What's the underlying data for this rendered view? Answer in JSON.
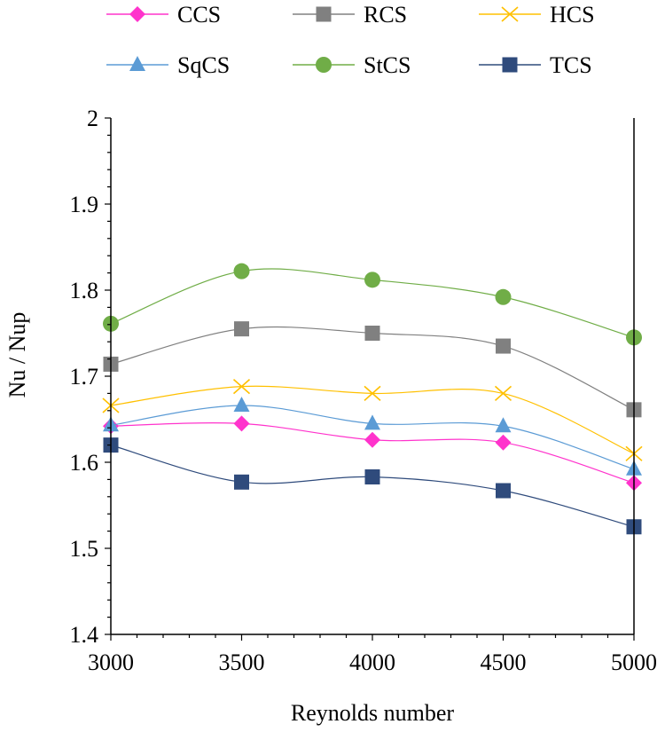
{
  "chart_data": {
    "type": "line",
    "title": "",
    "xlabel": "Reynolds number",
    "ylabel": "Nu / Nup",
    "x": [
      3000,
      3500,
      4000,
      4500,
      5000
    ],
    "xticks": [
      "3000",
      "3500",
      "4000",
      "4500",
      "5000"
    ],
    "xlim": [
      3000,
      5000
    ],
    "ylim": [
      1.4,
      2.0
    ],
    "yticks": [
      "1.4",
      "1.5",
      "1.6",
      "1.7",
      "1.8",
      "1.9",
      "2"
    ],
    "grid": false,
    "legend_position": "top",
    "series": [
      {
        "name": "CCS",
        "color": "#ff33cc",
        "marker": "diamond",
        "values": [
          1.642,
          1.645,
          1.626,
          1.623,
          1.576
        ]
      },
      {
        "name": "RCS",
        "color": "#808080",
        "marker": "square",
        "values": [
          1.714,
          1.755,
          1.75,
          1.735,
          1.661
        ]
      },
      {
        "name": "HCS",
        "color": "#ffc000",
        "marker": "x",
        "values": [
          1.666,
          1.688,
          1.68,
          1.68,
          1.61
        ]
      },
      {
        "name": "SqCS",
        "color": "#5b9bd5",
        "marker": "triangle",
        "values": [
          1.643,
          1.666,
          1.645,
          1.642,
          1.592
        ]
      },
      {
        "name": "StCS",
        "color": "#70ad47",
        "marker": "circle",
        "values": [
          1.761,
          1.822,
          1.812,
          1.792,
          1.745
        ]
      },
      {
        "name": "TCS",
        "color": "#2f4b7c",
        "marker": "square",
        "values": [
          1.62,
          1.577,
          1.583,
          1.567,
          1.525
        ]
      }
    ]
  }
}
